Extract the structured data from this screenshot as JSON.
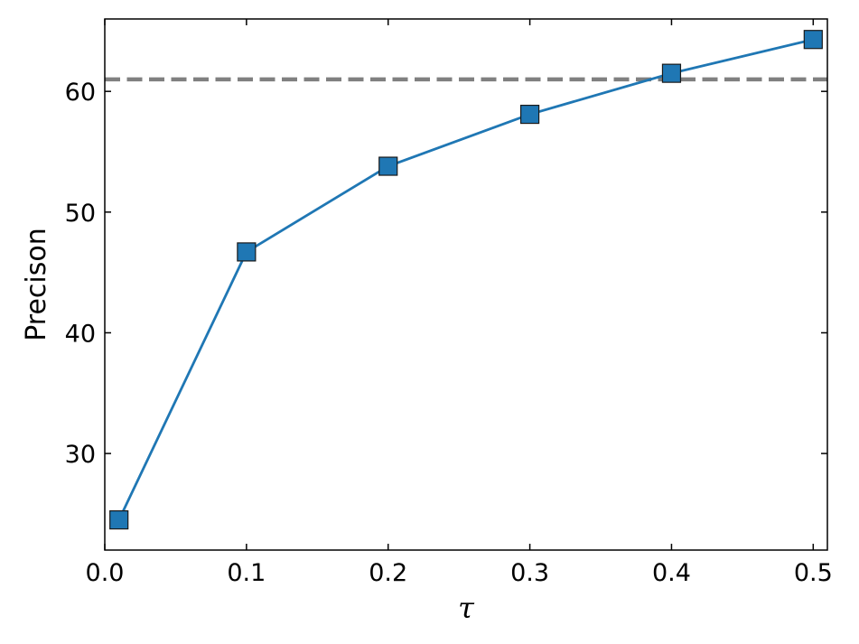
{
  "chart_data": {
    "type": "line",
    "xlabel": "τ",
    "ylabel": "Precison",
    "xlim": [
      0.0,
      0.51
    ],
    "ylim": [
      22.0,
      66.0
    ],
    "x_ticks": [
      0.0,
      0.1,
      0.2,
      0.3,
      0.4,
      0.5
    ],
    "x_tick_labels": [
      "0.0",
      "0.1",
      "0.2",
      "0.3",
      "0.4",
      "0.5"
    ],
    "y_ticks": [
      30,
      40,
      50,
      60
    ],
    "y_tick_labels": [
      "30",
      "40",
      "50",
      "60"
    ],
    "grid": false,
    "series": [
      {
        "marker": "square",
        "color": "#1f77b4",
        "x": [
          0.01,
          0.1,
          0.2,
          0.3,
          0.4,
          0.5
        ],
        "y": [
          24.5,
          46.7,
          53.8,
          58.1,
          61.5,
          64.3
        ]
      }
    ],
    "reference_line": {
      "orientation": "horizontal",
      "y": 61.0,
      "style": "dashed",
      "color": "#808080"
    }
  }
}
